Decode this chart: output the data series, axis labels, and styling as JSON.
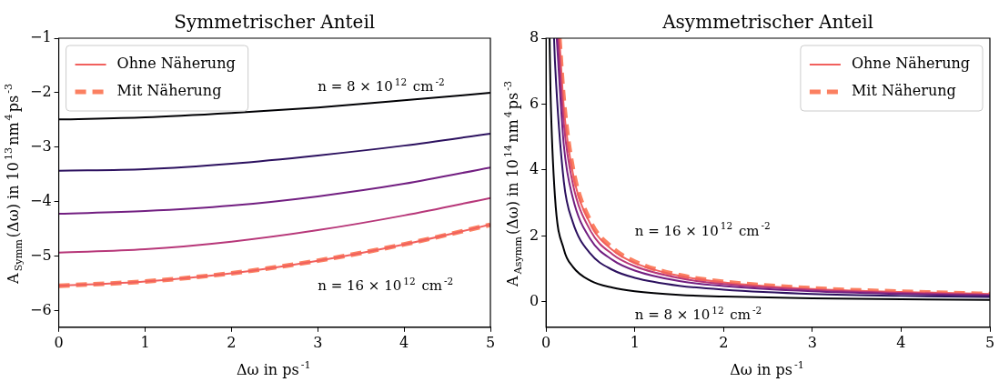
{
  "chart_data": [
    {
      "type": "line",
      "title": "Symmetrischer Anteil",
      "xlabel": "Δω in ps$^{-1}$",
      "ylabel": "A$_{Symm}$(Δω) in 10$^{13}$nm$^{4}$ps$^{-3}$",
      "xlim": [
        0,
        5
      ],
      "xticks": [
        0,
        1,
        2,
        3,
        4,
        5
      ],
      "ylim": [
        -6.3,
        -1
      ],
      "yticks": [
        -6,
        -5,
        -4,
        -3,
        -2,
        -1
      ],
      "grid": false,
      "legend": "top left",
      "marker": "none",
      "series": [
        {
          "color": "#000004",
          "x": [
            0,
            1,
            2,
            3,
            4,
            5
          ],
          "values": [
            -2.49,
            -2.45,
            -2.37,
            -2.27,
            -2.14,
            -2.0
          ]
        },
        {
          "color": "#2c115f",
          "x": [
            0,
            1,
            2,
            3,
            4,
            5
          ],
          "values": [
            -3.43,
            -3.4,
            -3.3,
            -3.15,
            -2.97,
            -2.75
          ]
        },
        {
          "color": "#721f81",
          "x": [
            0,
            1,
            2,
            3,
            4,
            5
          ],
          "values": [
            -4.22,
            -4.17,
            -4.07,
            -3.9,
            -3.67,
            -3.37
          ]
        },
        {
          "color": "#b73779",
          "x": [
            0,
            1,
            2,
            3,
            4,
            5
          ],
          "values": [
            -4.93,
            -4.87,
            -4.73,
            -4.52,
            -4.25,
            -3.93
          ]
        },
        {
          "name": "Ohne Näherung",
          "color": "#f1605d",
          "line_style": "solid",
          "x": [
            0,
            1,
            2,
            3,
            4,
            5
          ],
          "values": [
            -5.54,
            -5.46,
            -5.31,
            -5.08,
            -4.78,
            -4.42
          ]
        },
        {
          "name": "Mit Näherung",
          "color": "#fb8061",
          "line_style": "dashed",
          "x": [
            0,
            1,
            2,
            3,
            4,
            5
          ],
          "values": [
            -5.54,
            -5.46,
            -5.31,
            -5.08,
            -4.78,
            -4.42
          ]
        }
      ],
      "annotations": [
        "n = 8 × 10$^{12}$ cm$^{-2}$",
        "n = 16 × 10$^{12}$ cm$^{-2}$"
      ]
    },
    {
      "type": "line",
      "title": "Asymmetrischer Anteil",
      "xlabel": "Δω in ps$^{-1}$",
      "ylabel": "A$_{Asymm}$(Δω) in 10$^{14}$nm$^{4}$ps$^{-3}$",
      "xlim": [
        0,
        5
      ],
      "xticks": [
        0,
        1,
        2,
        3,
        4,
        5
      ],
      "ylim": [
        -0.77,
        8
      ],
      "yticks": [
        0,
        2,
        4,
        6,
        8
      ],
      "grid": false,
      "legend": "top right",
      "marker": "none",
      "series": [
        {
          "color": "#000004",
          "x": [
            0.04,
            0.05,
            0.1,
            0.2,
            0.3,
            0.5,
            0.75,
            1,
            1.5,
            2,
            3,
            4,
            5
          ],
          "values": [
            8,
            6.4,
            3.2,
            1.6,
            1.07,
            0.64,
            0.43,
            0.32,
            0.21,
            0.16,
            0.11,
            0.08,
            0.06
          ]
        },
        {
          "color": "#2c115f",
          "x": [
            0.09,
            0.1,
            0.2,
            0.3,
            0.5,
            0.75,
            1,
            1.5,
            2,
            3,
            4,
            5
          ],
          "values": [
            8,
            7.3,
            3.65,
            2.43,
            1.46,
            0.97,
            0.73,
            0.49,
            0.37,
            0.24,
            0.18,
            0.15
          ]
        },
        {
          "color": "#721f81",
          "x": [
            0.12,
            0.2,
            0.3,
            0.5,
            0.75,
            1,
            1.5,
            2,
            3,
            4,
            5
          ],
          "values": [
            8,
            4.75,
            3.17,
            1.9,
            1.27,
            0.95,
            0.63,
            0.48,
            0.32,
            0.24,
            0.19
          ]
        },
        {
          "color": "#b73779",
          "x": [
            0.135,
            0.2,
            0.3,
            0.5,
            0.75,
            1,
            1.5,
            2,
            3,
            4,
            5
          ],
          "values": [
            8,
            5.4,
            3.6,
            2.16,
            1.44,
            1.08,
            0.72,
            0.54,
            0.36,
            0.27,
            0.22
          ]
        },
        {
          "name": "Ohne Näherung",
          "color": "#f1605d",
          "line_style": "solid",
          "x": [
            0.15,
            0.2,
            0.3,
            0.5,
            0.75,
            1,
            1.5,
            2,
            3,
            4,
            5
          ],
          "values": [
            8,
            5.9,
            3.93,
            2.36,
            1.57,
            1.18,
            0.79,
            0.59,
            0.39,
            0.3,
            0.24
          ]
        },
        {
          "name": "Mit Näherung",
          "color": "#fb8061",
          "line_style": "dashed",
          "x": [
            0.15,
            0.2,
            0.3,
            0.5,
            0.75,
            1,
            1.5,
            2,
            3,
            4,
            5
          ],
          "values": [
            8,
            6.1,
            4.07,
            2.44,
            1.63,
            1.22,
            0.81,
            0.61,
            0.41,
            0.31,
            0.24
          ]
        }
      ],
      "annotations": [
        "n = 16 × 10$^{12}$ cm$^{-2}$",
        "n = 8 × 10$^{12}$ cm$^{-2}$"
      ]
    }
  ]
}
